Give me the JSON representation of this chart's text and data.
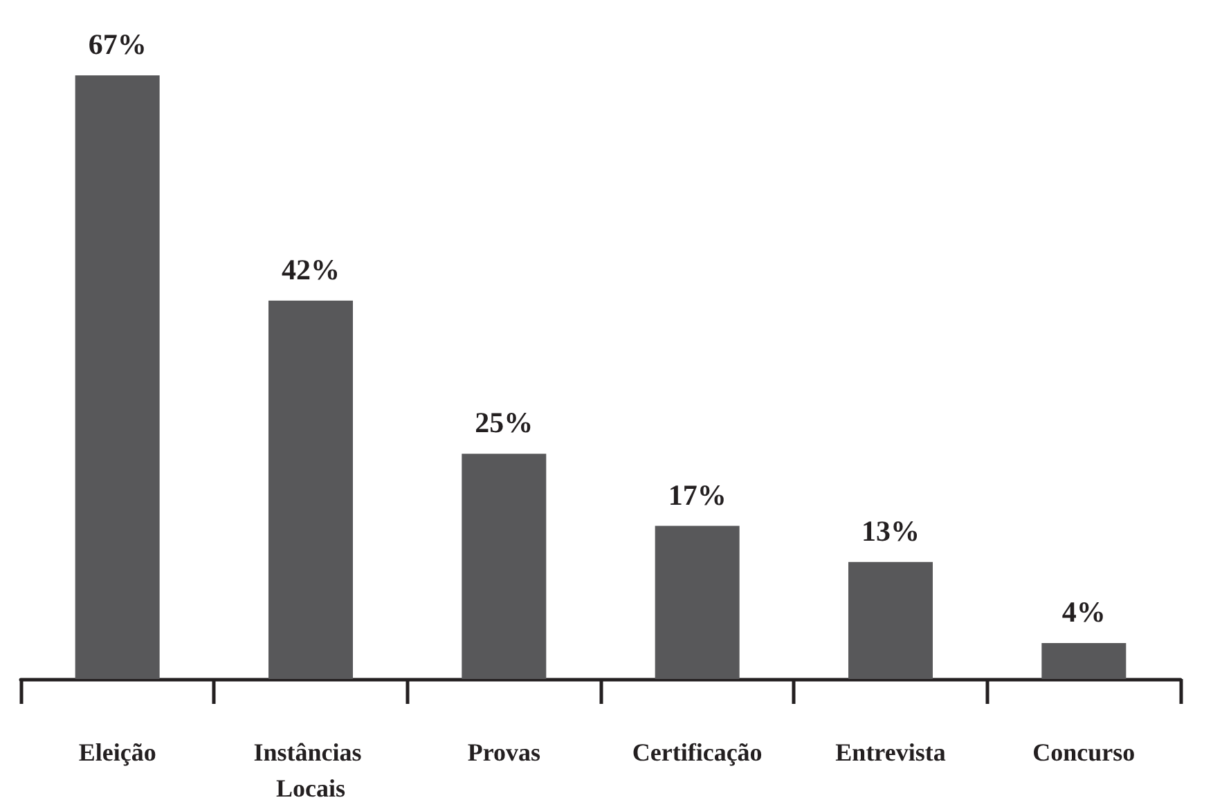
{
  "chart_data": {
    "type": "bar",
    "categories": [
      "Eleição",
      "Instâncias Locais",
      "Provas",
      "Certificação",
      "Entrevista",
      "Concurso"
    ],
    "values": [
      67,
      42,
      25,
      17,
      13,
      4
    ],
    "value_labels": [
      "67%",
      "42%",
      "25%",
      "17%",
      "13%",
      "4%"
    ],
    "color": "#58585a",
    "grid": false
  }
}
